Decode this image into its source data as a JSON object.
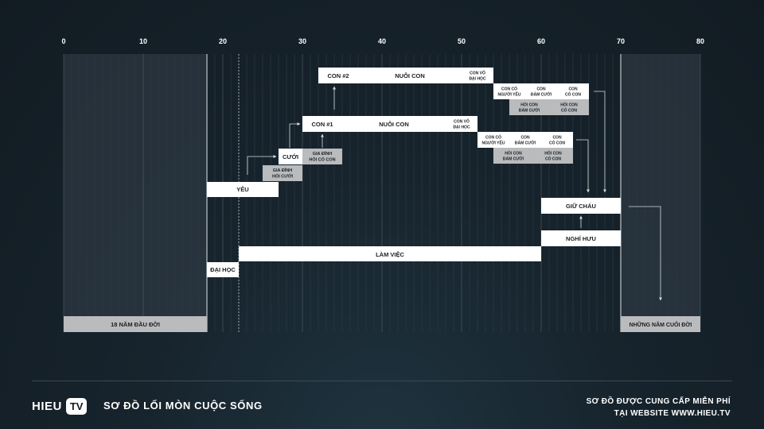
{
  "axis": {
    "ticks": [
      "0",
      "10",
      "20",
      "30",
      "40",
      "50",
      "60",
      "70",
      "80"
    ]
  },
  "boxes": {
    "childhood": "18 NĂM ĐẦU ĐỜI",
    "last_years": "NHỮNG NĂM CUỐI ĐỜI",
    "university": "ĐẠI HỌC",
    "work": "LÀM VIỆC",
    "love": "YÊU",
    "family_asks": [
      "GIA ĐÌNH",
      "HỎI CƯỚI"
    ],
    "marriage": "CƯỚI",
    "family_asks_child": [
      "GIA ĐÌNH",
      "HỎI CÓ CON"
    ],
    "child1": "CON #1",
    "raise1": "NUÔI CON",
    "child1_uni": [
      "CON VÔ",
      "ĐẠI HỌC"
    ],
    "child1_lover": [
      "CON CÓ",
      "NGƯỜI YÊU"
    ],
    "child1_wedding": [
      "CON",
      "ĐÁM CƯỚI"
    ],
    "child1_kids": [
      "CON",
      "CÓ CON"
    ],
    "child1_ask_wedding": [
      "HỎI CON",
      "ĐÁM CƯỚI"
    ],
    "child1_ask_kids": [
      "HỎI CON",
      "CÓ CON"
    ],
    "child2": "CON #2",
    "raise2": "NUÔI CON",
    "child2_uni": [
      "CON VÔ",
      "ĐẠI HỌC"
    ],
    "child2_lover": [
      "CON CÓ",
      "NGƯỜI YÊU"
    ],
    "child2_wedding": [
      "CON",
      "ĐÁM CƯỚI"
    ],
    "child2_kids": [
      "CON",
      "CÓ CON"
    ],
    "child2_ask_wedding": [
      "HỎI CON",
      "ĐÁM CƯỚI"
    ],
    "child2_ask_kids": [
      "HỎI CON",
      "CÓ CON"
    ],
    "babysit": "GIỮ CHÁU",
    "retire": "NGHỈ HƯU"
  },
  "footer": {
    "logo_hieu": "HIEU",
    "logo_tv": "TV",
    "title": "SƠ ĐỒ LỐI MÒN CUỘC SỐNG",
    "credit_line1": "SƠ ĐỒ ĐƯỢC CUNG CẤP MIỄN PHÍ",
    "credit_line2": "TẠI WEBSITE WWW.HIEU.TV"
  },
  "colors": {
    "background": "#17242d",
    "box": "#ffffff",
    "box_secondary": "#b9bbbd",
    "text_dark": "#1a1f24"
  }
}
